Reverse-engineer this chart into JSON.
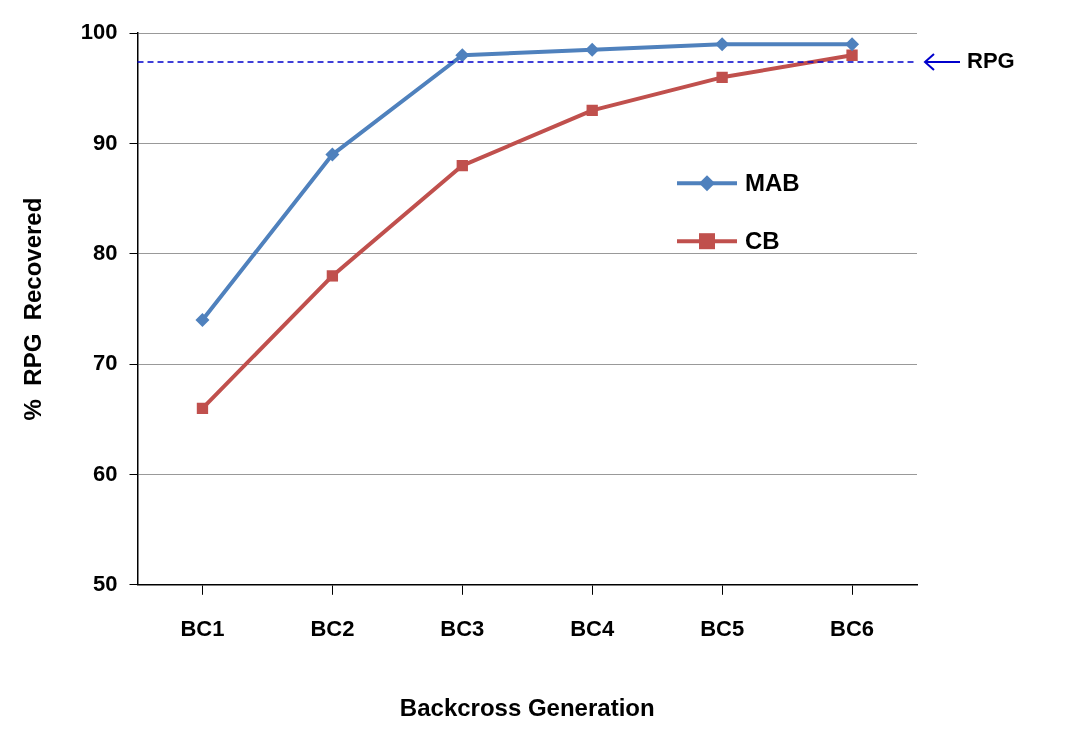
{
  "chart_data": {
    "type": "line",
    "xlabel": "Backcross Generation",
    "ylabel": "%  RPG  Recovered",
    "categories": [
      "BC1",
      "BC2",
      "BC3",
      "BC4",
      "BC5",
      "BC6"
    ],
    "series": [
      {
        "name": "MAB",
        "color": "#4f81bd",
        "marker": "diamond",
        "values": [
          74,
          89,
          98,
          98.5,
          99,
          99
        ]
      },
      {
        "name": "CB",
        "color": "#c0504d",
        "marker": "square",
        "values": [
          66,
          78,
          88,
          93,
          96,
          98
        ]
      }
    ],
    "ylim": [
      50,
      100
    ],
    "yticks": [
      50,
      60,
      70,
      80,
      90,
      100
    ],
    "grid": "y",
    "legend": "right",
    "line_style": "solid",
    "ref_lines": [
      {
        "axis": "y",
        "value": 97.4,
        "label": "RPG",
        "color": "#0000cc",
        "line_style": "dashed"
      }
    ]
  }
}
